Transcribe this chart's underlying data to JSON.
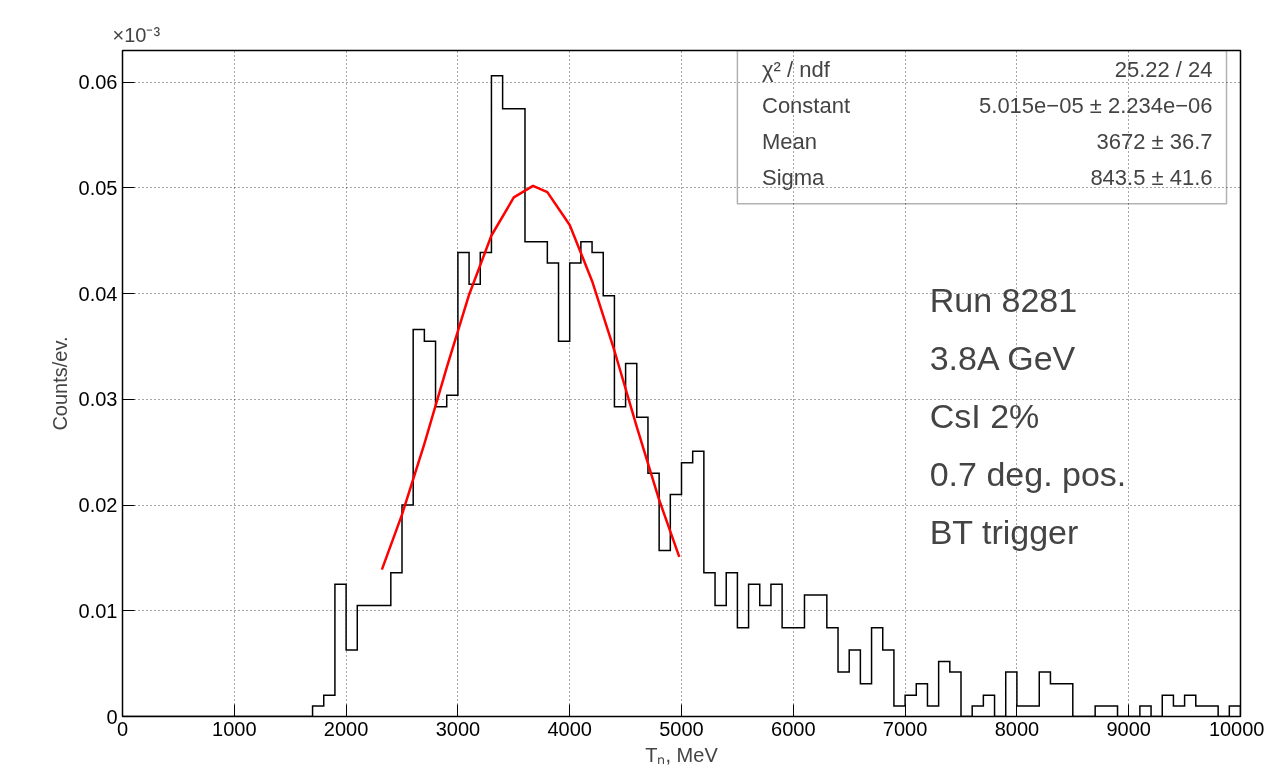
{
  "chart_data": {
    "type": "histogram",
    "xlabel": "Tₙ, MeV",
    "ylabel": "Counts/ev.",
    "bins": [
      0,
      100,
      200,
      300,
      400,
      500,
      600,
      700,
      800,
      900,
      1000,
      1100,
      1200,
      1300,
      1400,
      1500,
      1600,
      1700,
      1800,
      1900,
      2000,
      2100,
      2200,
      2300,
      2400,
      2500,
      2600,
      2700,
      2800,
      2900,
      3000,
      3100,
      3200,
      3300,
      3400,
      3500,
      3600,
      3700,
      3800,
      3900,
      4000,
      4100,
      4200,
      4300,
      4400,
      4500,
      4600,
      4700,
      4800,
      4900,
      5000,
      5100,
      5200,
      5300,
      5400,
      5500,
      5600,
      5700,
      5800,
      5900,
      6000,
      6100,
      6200,
      6300,
      6400,
      6500,
      6600,
      6700,
      6800,
      6900,
      7000,
      7100,
      7200,
      7300,
      7400,
      7500,
      7600,
      7700,
      7800,
      7900,
      8000,
      8100,
      8200,
      8300,
      8400,
      8500,
      8600,
      8700,
      8800,
      8900,
      9000,
      9100,
      9200,
      9300,
      9400,
      9500,
      9600,
      9700,
      9800,
      9900,
      10000
    ],
    "values": [
      0,
      0,
      0,
      0,
      0,
      0,
      0,
      0,
      0,
      0,
      0,
      0,
      0,
      0,
      0,
      0,
      0,
      0.001,
      0.002,
      0.0125,
      0.0063,
      0.0105,
      0.0105,
      0.0105,
      0.0136,
      0.02,
      0.0366,
      0.0355,
      0.0293,
      0.0304,
      0.0439,
      0.0409,
      0.0439,
      0.0606,
      0.0575,
      0.0575,
      0.0449,
      0.0449,
      0.0429,
      0.0355,
      0.0429,
      0.0449,
      0.0439,
      0.0398,
      0.0293,
      0.0334,
      0.0283,
      0.023,
      0.0157,
      0.021,
      0.024,
      0.0251,
      0.0136,
      0.0105,
      0.0136,
      0.0084,
      0.0125,
      0.0105,
      0.0125,
      0.0084,
      0.0084,
      0.0115,
      0.0115,
      0.0084,
      0.0042,
      0.0063,
      0.0031,
      0.0084,
      0.0063,
      0.001,
      0.002,
      0.0031,
      0.001,
      0.0052,
      0.0042,
      0,
      0.001,
      0.002,
      0,
      0.0042,
      0.001,
      0.001,
      0.0042,
      0.0031,
      0.0031,
      0,
      0,
      0.001,
      0.001,
      0,
      0,
      0.001,
      0,
      0.002,
      0.001,
      0.002,
      0.001,
      0.001,
      0,
      0.001
    ],
    "color": "#000000",
    "series": [
      {
        "type": "line",
        "color": "#ff0000",
        "x": [
          2320,
          2500,
          2700,
          2900,
          3100,
          3300,
          3500,
          3672,
          3800,
          4000,
          4200,
          4400,
          4600,
          4800,
          4980
        ],
        "values": [
          0.0139,
          0.0191,
          0.0258,
          0.033,
          0.0399,
          0.0455,
          0.0491,
          0.0502,
          0.0496,
          0.0465,
          0.0412,
          0.0346,
          0.0274,
          0.0205,
          0.0151
        ]
      }
    ],
    "xlim": [
      0,
      10000
    ],
    "ylim": [
      0,
      0.063
    ],
    "xticks": [
      0,
      1000,
      2000,
      3000,
      4000,
      5000,
      6000,
      7000,
      8000,
      9000,
      10000
    ],
    "yticks": [
      0,
      0.01,
      0.02,
      0.03,
      0.04,
      0.05,
      0.06
    ],
    "grid": true,
    "annotations": [
      "×10⁻³",
      "χ² / ndf",
      "25.22 / 24",
      "Constant",
      "5.015e−05 ± 2.234e−06",
      "Mean",
      "3672 ± 36.7",
      "Sigma",
      "843.5 ± 41.6",
      "Run 8281",
      "3.8A GeV",
      "CsI 2%",
      "0.7 deg. pos.",
      "BT trigger"
    ]
  }
}
